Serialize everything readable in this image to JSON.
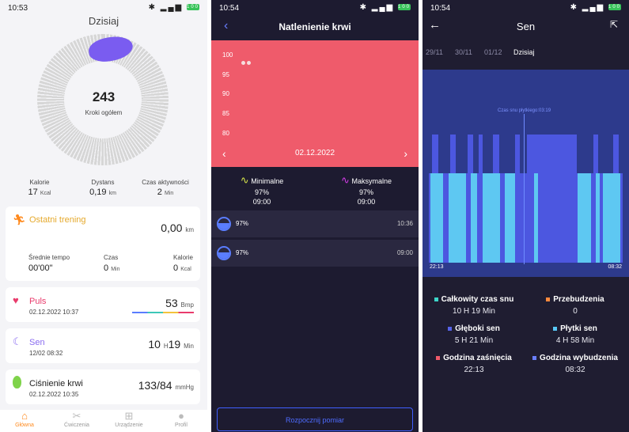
{
  "panel1": {
    "status": {
      "time": "10:53",
      "battery": "100"
    },
    "title": "Dzisiaj",
    "steps": {
      "value": "243",
      "label": "Kroki ogółem"
    },
    "stats": [
      {
        "label": "Kalorie",
        "value": "17",
        "unit": "Kcal"
      },
      {
        "label": "Dystans",
        "value": "0,19",
        "unit": "km"
      },
      {
        "label": "Czas aktywności",
        "value": "2",
        "unit": "Min"
      }
    ],
    "training": {
      "title": "Ostatni trening",
      "value": "0,00",
      "unit": "km",
      "pace_label": "Średnie tempo",
      "pace_value": "00'00\"",
      "time_label": "Czas",
      "time_value": "0",
      "time_unit": "Min",
      "cal_label": "Kalorie",
      "cal_value": "0",
      "cal_unit": "Kcal"
    },
    "pulse": {
      "title": "Puls",
      "date": "02.12.2022 10:37",
      "value": "53",
      "unit": "Bmp"
    },
    "sleep": {
      "title": "Sen",
      "date": "12/02 08:32",
      "h": "10",
      "h_unit": "H",
      "m": "19",
      "m_unit": "Min"
    },
    "pressure": {
      "title": "Ciśnienie krwi",
      "date": "02.12.2022 10:35",
      "value": "133/84",
      "unit": "mmHg"
    },
    "nav": [
      {
        "label": "Główna",
        "active": true
      },
      {
        "label": "Ćwiczenia",
        "active": false
      },
      {
        "label": "Urządzenie",
        "active": false
      },
      {
        "label": "Profil",
        "active": false
      }
    ],
    "colors": {
      "accent": "#ff8a1e",
      "ring": "#d6d6d6",
      "steps_blob": "#7a5cf0"
    }
  },
  "panel2": {
    "status": {
      "time": "10:54",
      "battery": "100"
    },
    "title": "Natlenienie krwi",
    "y_ticks": [
      "100",
      "95",
      "90",
      "85",
      "80"
    ],
    "date": "02.12.2022",
    "min": {
      "label": "Minimalne",
      "value": "97%",
      "time": "09:00"
    },
    "max": {
      "label": "Maksymalne",
      "value": "97%",
      "time": "09:00"
    },
    "records": [
      {
        "value": "97%",
        "time": "10:36"
      },
      {
        "value": "97%",
        "time": "09:00"
      }
    ],
    "start_button": "Rozpocznij pomiar",
    "colors": {
      "header": "#ef5b6b",
      "accent": "#5a7dff"
    }
  },
  "panel3": {
    "status": {
      "time": "10:54",
      "battery": "100"
    },
    "title": "Sen",
    "tabs": [
      "29/11",
      "30/11",
      "01/12",
      "Dzisiaj"
    ],
    "chart_caption": "Czas snu płytkiego:03:19",
    "time_start": "22:13",
    "time_end": "08:32",
    "legend": [
      {
        "label": "Całkowity czas snu",
        "value": "10 H 19 Min",
        "color": "#3dd6c9"
      },
      {
        "label": "Przebudzenia",
        "value": "0",
        "color": "#ff8a3d"
      },
      {
        "label": "Głęboki sen",
        "value": "5 H 21 Min",
        "color": "#5663e8"
      },
      {
        "label": "Płytki sen",
        "value": "4 H 58 Min",
        "color": "#58c8f5"
      },
      {
        "label": "Godzina zaśnięcia",
        "value": "22:13",
        "color": "#f05a6a"
      },
      {
        "label": "Godzina wybudzenia",
        "value": "08:32",
        "color": "#6a7fff"
      }
    ],
    "colors": {
      "deep": "#4c57e0",
      "light": "#5ec8f2",
      "bg": "#2d3a8c"
    }
  }
}
